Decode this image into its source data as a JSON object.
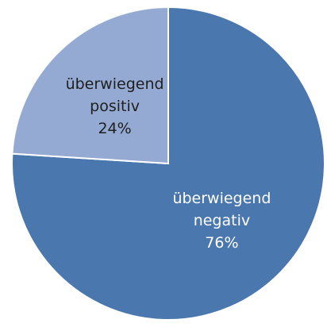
{
  "chart_data": {
    "type": "pie",
    "categories": [
      "überwiegend negativ",
      "überwiegend positiv"
    ],
    "values": [
      76,
      24
    ],
    "value_labels": [
      "76%",
      "24%"
    ],
    "colors": [
      "#4a77ad",
      "#94aad2"
    ],
    "label_colors": [
      "#ffffff",
      "#1f1f1f"
    ],
    "start_angle": 0,
    "direction": "clockwise"
  }
}
